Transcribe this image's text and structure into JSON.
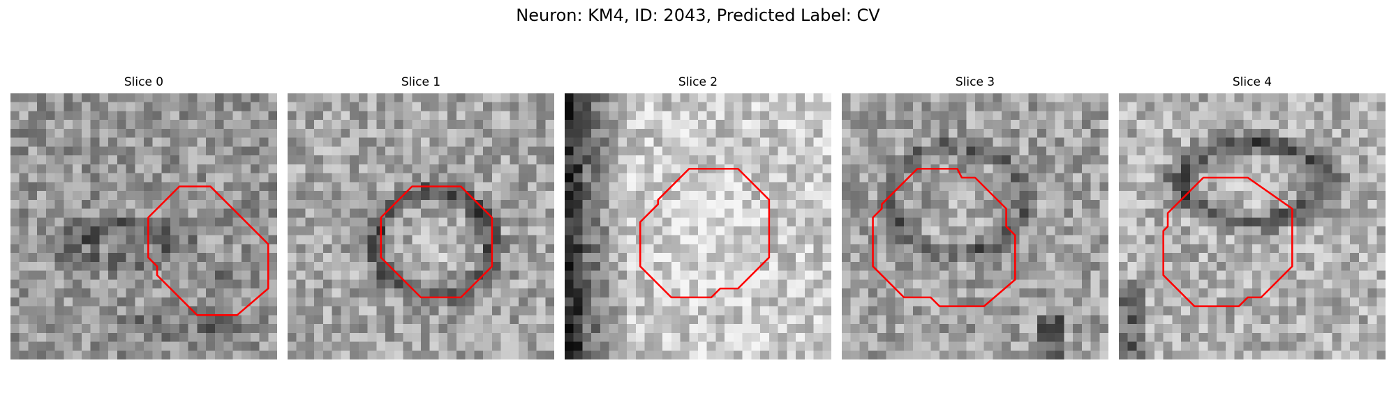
{
  "figure": {
    "title": "Neuron: KM4, ID: 2043, Predicted Label: CV",
    "outline_color": "#ff0000",
    "grid_size": 30,
    "slices": [
      {
        "label": "Slice 0"
      },
      {
        "label": "Slice 1"
      },
      {
        "label": "Slice 2"
      },
      {
        "label": "Slice 3"
      },
      {
        "label": "Slice 4"
      }
    ]
  }
}
